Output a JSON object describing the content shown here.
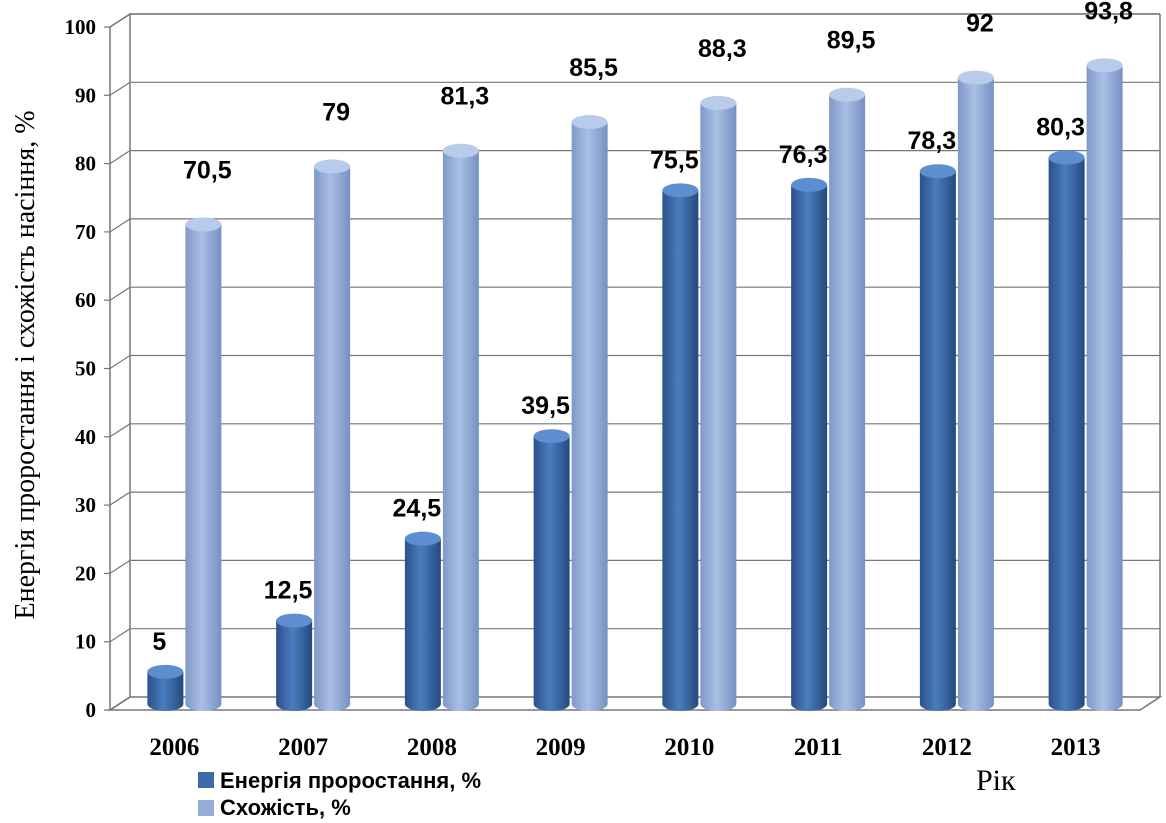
{
  "chart_data": {
    "type": "bar",
    "categories": [
      "2006",
      "2007",
      "2008",
      "2009",
      "2010",
      "2011",
      "2012",
      "2013"
    ],
    "series": [
      {
        "name": "Енергія проростання, %",
        "values": [
          5,
          12.5,
          24.5,
          39.5,
          75.5,
          76.3,
          78.3,
          80.3
        ],
        "labels": [
          "5",
          "12,5",
          "24,5",
          "39,5",
          "75,5",
          "76,3",
          "78,3",
          "80,3"
        ],
        "color": "#3e6aa8"
      },
      {
        "name": "Схожість, %",
        "values": [
          70.5,
          79,
          81.3,
          85.5,
          88.3,
          89.5,
          92,
          93.8
        ],
        "labels": [
          "70,5",
          "79",
          "81,3",
          "85,5",
          "88,3",
          "89,5",
          "92",
          "93,8"
        ],
        "color": "#94acd8"
      }
    ],
    "ylabel": "Енергія проростання і схожість насіння, %",
    "xlabel": "Рік",
    "ylim": [
      0,
      100
    ],
    "yticks": [
      "0",
      "10",
      "20",
      "30",
      "40",
      "50",
      "60",
      "70",
      "80",
      "90",
      "100"
    ],
    "grid": true,
    "legend": "bottom-left"
  }
}
